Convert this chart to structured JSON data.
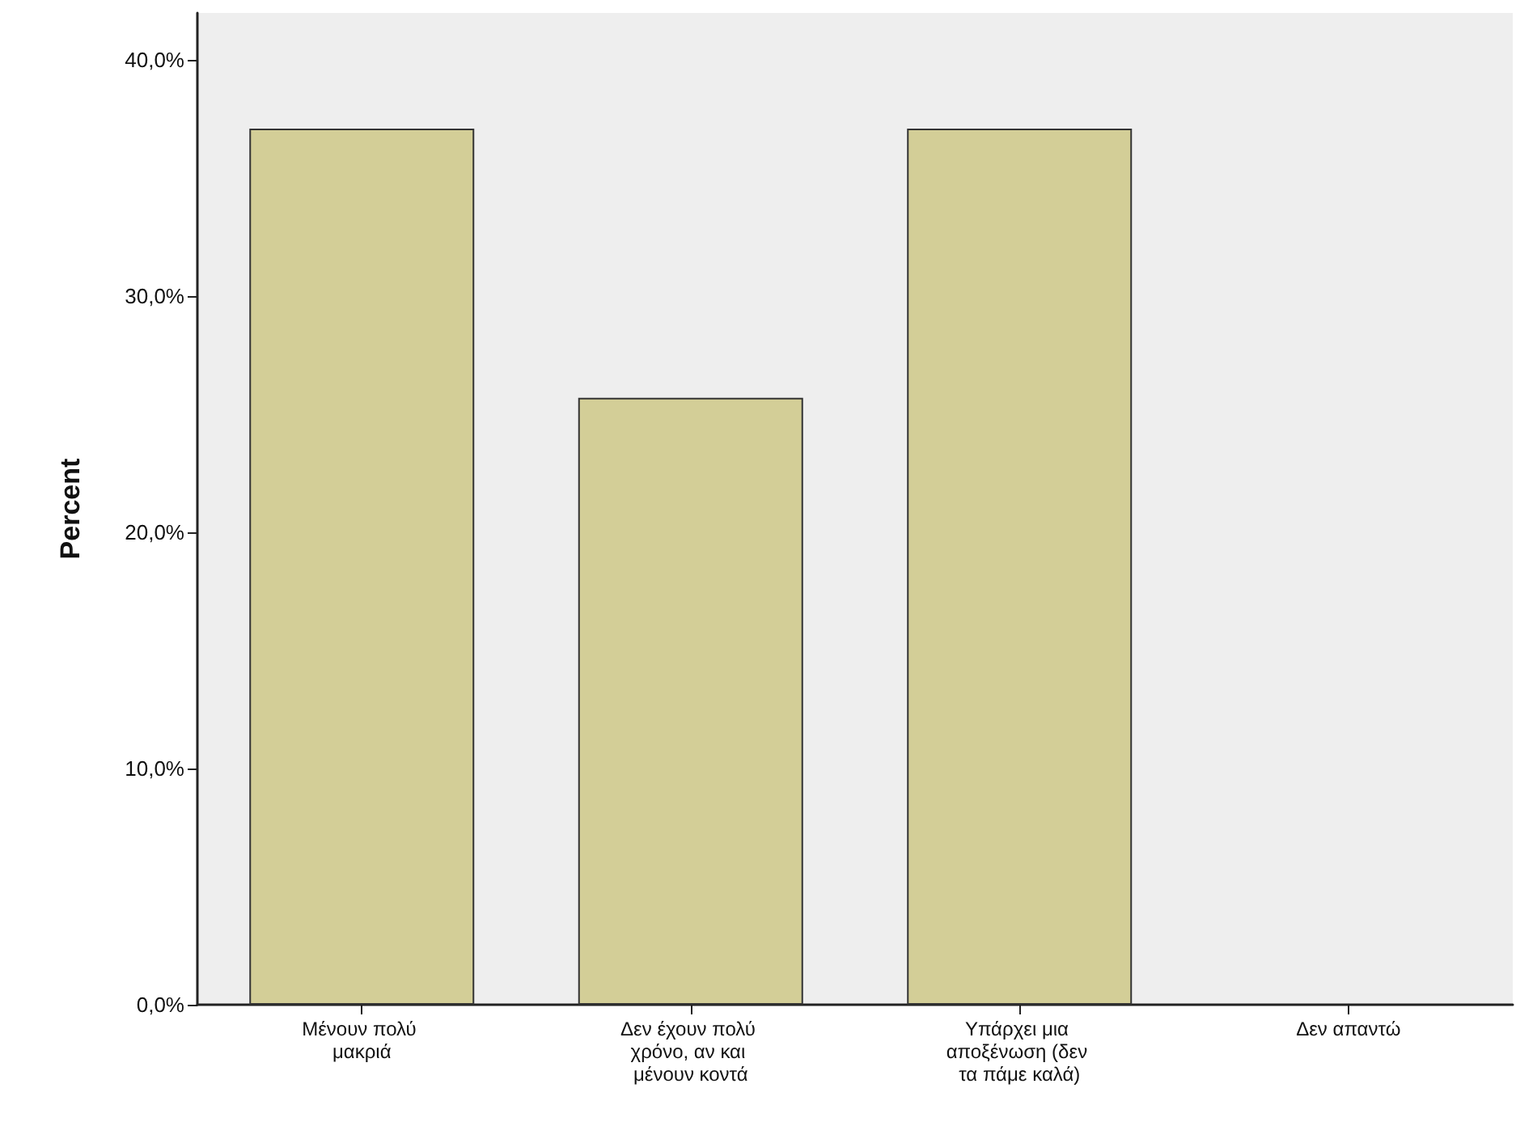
{
  "chart_data": {
    "type": "bar",
    "ylabel": "Percent",
    "categories": [
      "Μένουν πολύ μακριά",
      "Δεν έχουν πολύ χρόνο, αν και μένουν κοντά",
      "Υπάρχει μια αποξένωση (δεν τα πάμε καλά)",
      "Δεν απαντώ"
    ],
    "values": [
      37.1,
      25.7,
      37.1,
      0
    ],
    "color": "#d3ce97",
    "ylim": [
      0,
      42
    ],
    "yticks": [
      {
        "value": 0,
        "label": "0,0%"
      },
      {
        "value": 10,
        "label": "10,0%"
      },
      {
        "value": 20,
        "label": "20,0%"
      },
      {
        "value": 30,
        "label": "30,0%"
      },
      {
        "value": 40,
        "label": "40,0%"
      }
    ],
    "grid": false
  }
}
